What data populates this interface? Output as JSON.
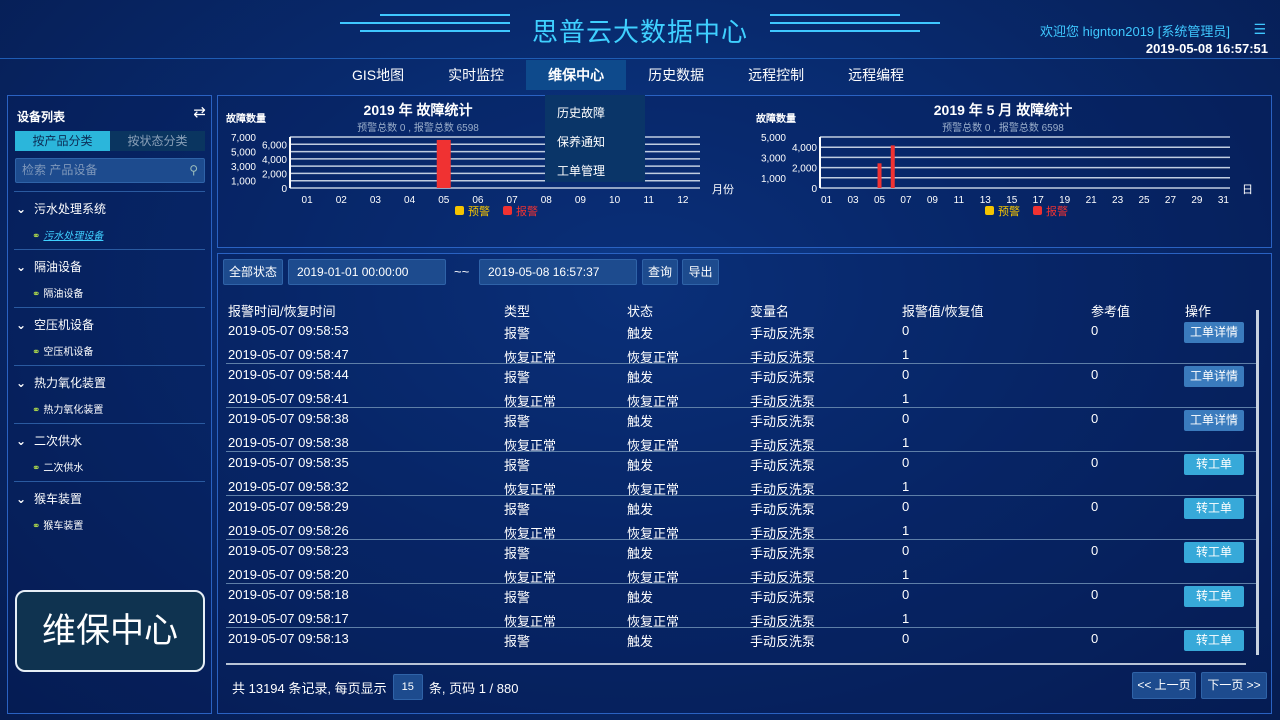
{
  "header": {
    "title": "思普云大数据中心",
    "welcome": "欢迎您  hignton2019 [系统管理员]",
    "datetime": "2019-05-08 16:57:51",
    "menu_icon": "list-icon"
  },
  "nav": {
    "items": [
      "GIS地图",
      "实时监控",
      "维保中心",
      "历史数据",
      "远程控制",
      "远程编程"
    ],
    "active": 2,
    "dropdown": [
      "历史故障",
      "保养通知",
      "工单管理"
    ]
  },
  "sidebar": {
    "title": "设备列表",
    "swap_icon": "swap-icon",
    "tabs": [
      "按产品分类",
      "按状态分类"
    ],
    "search_placeholder": "检索 产品设备",
    "groups": [
      {
        "name": "污水处理系统",
        "child": "污水处理设备"
      },
      {
        "name": "隔油设备",
        "child": "隔油设备"
      },
      {
        "name": "空压机设备",
        "child": "空压机设备"
      },
      {
        "name": "热力氧化装置",
        "child": "热力氧化装置"
      },
      {
        "name": "二次供水",
        "child": "二次供水"
      },
      {
        "name": "猴车装置",
        "child": "猴车装置"
      }
    ]
  },
  "chart_data": [
    {
      "type": "bar",
      "title": "2019 年 故障统计",
      "subtitle": "预警总数 0 , 报警总数 6598",
      "ylabel": "故障数量",
      "xlabel": "月份",
      "ylim": [
        0,
        7000
      ],
      "yticks": [
        0,
        1000,
        2000,
        3000,
        4000,
        5000,
        6000,
        7000
      ],
      "grid": true,
      "legend": "bottom",
      "categories": [
        "01",
        "02",
        "03",
        "04",
        "05",
        "06",
        "07",
        "08",
        "09",
        "10",
        "11",
        "12"
      ],
      "series": [
        {
          "name": "预警",
          "color": "#f5c400",
          "values": [
            0,
            0,
            0,
            0,
            0,
            0,
            0,
            0,
            0,
            0,
            0,
            0
          ]
        },
        {
          "name": "报警",
          "color": "#f03232",
          "values": [
            0,
            0,
            0,
            0,
            6598,
            0,
            0,
            0,
            0,
            0,
            0,
            0
          ]
        }
      ]
    },
    {
      "type": "bar",
      "title": "2019 年 5 月 故障统计",
      "subtitle": "预警总数 0 , 报警总数 6598",
      "ylabel": "故障数量",
      "xlabel": "日",
      "ylim": [
        0,
        5000
      ],
      "yticks": [
        0,
        1000,
        2000,
        3000,
        4000,
        5000
      ],
      "grid": true,
      "legend": "bottom",
      "categories": [
        "01",
        "02",
        "03",
        "04",
        "05",
        "06",
        "07",
        "08",
        "09",
        "10",
        "11",
        "12",
        "13",
        "14",
        "15",
        "16",
        "17",
        "18",
        "19",
        "20",
        "21",
        "22",
        "23",
        "24",
        "25",
        "26",
        "27",
        "28",
        "29",
        "30",
        "31"
      ],
      "tick_labels": [
        "01",
        "03",
        "05",
        "07",
        "09",
        "11",
        "13",
        "15",
        "17",
        "19",
        "21",
        "23",
        "25",
        "27",
        "29",
        "31"
      ],
      "series": [
        {
          "name": "预警",
          "color": "#f5c400",
          "values": [
            0,
            0,
            0,
            0,
            0,
            0,
            0,
            0,
            0,
            0,
            0,
            0,
            0,
            0,
            0,
            0,
            0,
            0,
            0,
            0,
            0,
            0,
            0,
            0,
            0,
            0,
            0,
            0,
            0,
            0,
            0
          ]
        },
        {
          "name": "报警",
          "color": "#f03232",
          "values": [
            0,
            0,
            0,
            0,
            2420,
            4178,
            0,
            0,
            0,
            0,
            0,
            0,
            0,
            0,
            0,
            0,
            0,
            0,
            0,
            0,
            0,
            0,
            0,
            0,
            0,
            0,
            0,
            0,
            0,
            0,
            0
          ]
        }
      ]
    }
  ],
  "filter": {
    "status": "全部状态",
    "start": "2019-01-01 00:00:00",
    "sep": "~~",
    "end": "2019-05-08 16:57:37",
    "query": "查询",
    "export": "导出"
  },
  "table": {
    "headers": [
      "报警时间/恢复时间",
      "类型",
      "状态",
      "变量名",
      "报警值/恢复值",
      "参考值",
      "操作"
    ],
    "rows": [
      [
        "2019-05-07 09:58:53",
        "报警",
        "触发",
        "手动反洗泵",
        "0",
        "0",
        "工单详情"
      ],
      [
        "2019-05-07 09:58:47",
        "恢复正常",
        "恢复正常",
        "手动反洗泵",
        "1",
        "",
        ""
      ],
      [
        "2019-05-07 09:58:44",
        "报警",
        "触发",
        "手动反洗泵",
        "0",
        "0",
        "工单详情"
      ],
      [
        "2019-05-07 09:58:41",
        "恢复正常",
        "恢复正常",
        "手动反洗泵",
        "1",
        "",
        ""
      ],
      [
        "2019-05-07 09:58:38",
        "报警",
        "触发",
        "手动反洗泵",
        "0",
        "0",
        "工单详情"
      ],
      [
        "2019-05-07 09:58:38",
        "恢复正常",
        "恢复正常",
        "手动反洗泵",
        "1",
        "",
        ""
      ],
      [
        "2019-05-07 09:58:35",
        "报警",
        "触发",
        "手动反洗泵",
        "0",
        "0",
        "转工单"
      ],
      [
        "2019-05-07 09:58:32",
        "恢复正常",
        "恢复正常",
        "手动反洗泵",
        "1",
        "",
        ""
      ],
      [
        "2019-05-07 09:58:29",
        "报警",
        "触发",
        "手动反洗泵",
        "0",
        "0",
        "转工单"
      ],
      [
        "2019-05-07 09:58:26",
        "恢复正常",
        "恢复正常",
        "手动反洗泵",
        "1",
        "",
        ""
      ],
      [
        "2019-05-07 09:58:23",
        "报警",
        "触发",
        "手动反洗泵",
        "0",
        "0",
        "转工单"
      ],
      [
        "2019-05-07 09:58:20",
        "恢复正常",
        "恢复正常",
        "手动反洗泵",
        "1",
        "",
        ""
      ],
      [
        "2019-05-07 09:58:18",
        "报警",
        "触发",
        "手动反洗泵",
        "0",
        "0",
        "转工单"
      ],
      [
        "2019-05-07 09:58:17",
        "恢复正常",
        "恢复正常",
        "手动反洗泵",
        "1",
        "",
        ""
      ],
      [
        "2019-05-07 09:58:13",
        "报警",
        "触发",
        "手动反洗泵",
        "0",
        "0",
        "转工单"
      ]
    ]
  },
  "pager": {
    "prefix": "共 13194 条记录, 每页显示",
    "page_size": "15",
    "suffix": "条, 页码 1 / 880",
    "prev": "<< 上一页",
    "next": "下一页 >>"
  },
  "toast": "维保中心"
}
